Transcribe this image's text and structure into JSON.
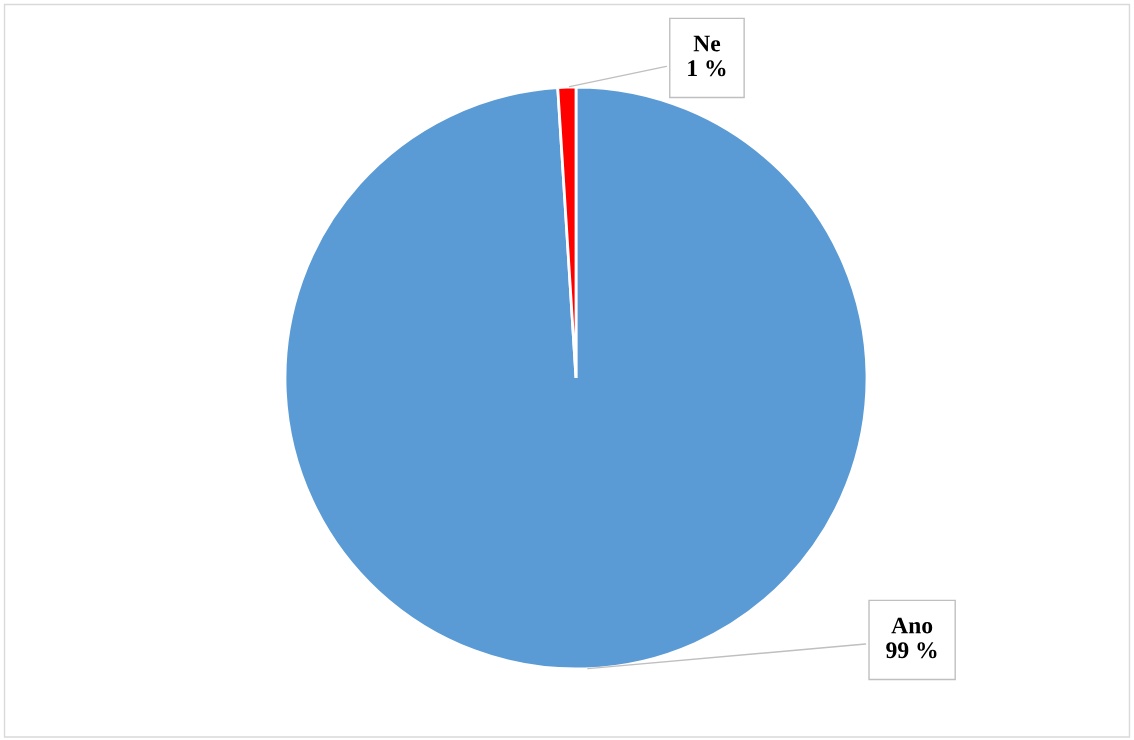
{
  "chart_data": {
    "type": "pie",
    "categories": [
      "Ano",
      "Ne"
    ],
    "values": [
      99,
      1
    ],
    "value_labels": [
      "99 %",
      "1 %"
    ],
    "colors": [
      "#5b9bd5",
      "#ff0000"
    ],
    "legend": false
  }
}
